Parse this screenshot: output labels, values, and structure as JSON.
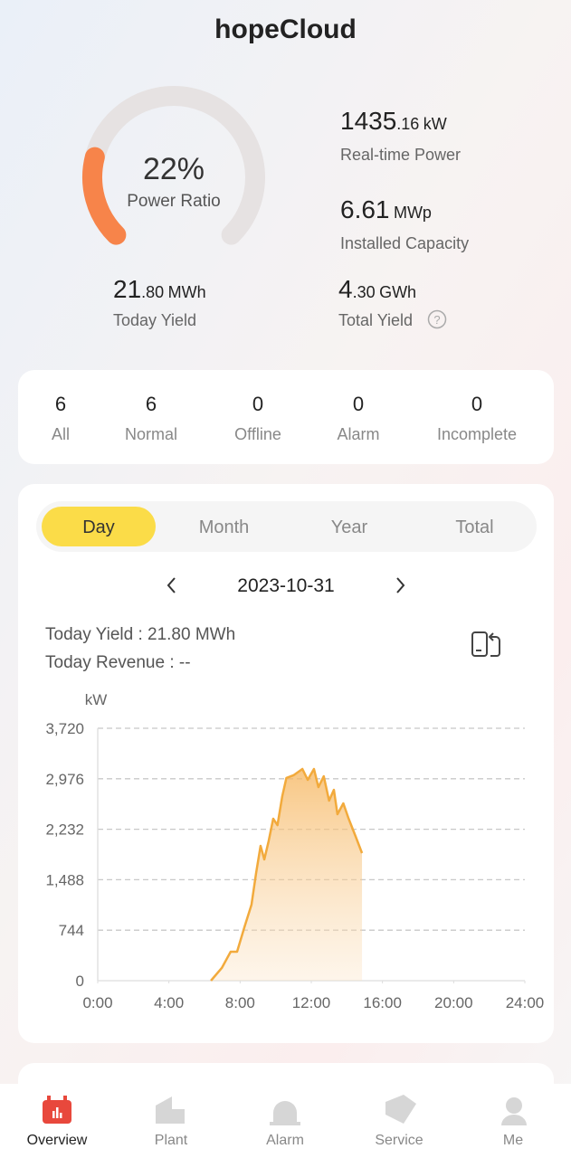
{
  "header": {
    "title": "hopeCloud"
  },
  "gauge": {
    "value": 22,
    "value_label": "22%",
    "label": "Power Ratio"
  },
  "stats": [
    {
      "int": "1435",
      "dec": ".16",
      "unit": "kW",
      "label": "Real-time Power"
    },
    {
      "int": "6.61",
      "unit": "MWp",
      "label": "Installed Capacity"
    },
    {
      "int": "21",
      "dec": ".80",
      "unit": "MWh",
      "label": "Today Yield"
    },
    {
      "int": "4",
      "dec": ".30",
      "unit": "GWh",
      "label": "Total Yield"
    }
  ],
  "status": [
    {
      "count": "6",
      "label": "All"
    },
    {
      "count": "6",
      "label": "Normal"
    },
    {
      "count": "0",
      "label": "Offline"
    },
    {
      "count": "0",
      "label": "Alarm"
    },
    {
      "count": "0",
      "label": "Incomplete"
    }
  ],
  "tabs": [
    "Day",
    "Month",
    "Year",
    "Total"
  ],
  "date": "2023-10-31",
  "summary": [
    "Today Yield : 21.80 MWh",
    "Today Revenue : --"
  ],
  "chart_data": {
    "type": "area",
    "ylabel": "kW",
    "color": "#f2aa3c",
    "x": [
      6.36,
      6.97,
      7.47,
      7.83,
      8.24,
      8.64,
      8.9,
      9.15,
      9.36,
      9.6,
      9.86,
      10.1,
      10.37,
      10.6,
      11.0,
      11.5,
      11.8,
      12.15,
      12.4,
      12.7,
      13.0,
      13.27,
      13.47,
      13.8,
      14.1,
      14.5,
      14.85
    ],
    "y": [
      0,
      187,
      427,
      427,
      787,
      1120,
      1587,
      1987,
      1787,
      2053,
      2387,
      2293,
      2720,
      2987,
      3027,
      3120,
      2960,
      3120,
      2853,
      3013,
      2653,
      2813,
      2453,
      2613,
      2387,
      2120,
      1880
    ],
    "xlim": [
      0,
      24
    ],
    "xticks": [
      {
        "value": 0,
        "label": "0:00"
      },
      {
        "value": 4,
        "label": "4:00"
      },
      {
        "value": 8,
        "label": "8:00"
      },
      {
        "value": 12,
        "label": "12:00"
      },
      {
        "value": 16,
        "label": "16:00"
      },
      {
        "value": 20,
        "label": "20:00"
      },
      {
        "value": 24,
        "label": "24:00"
      }
    ],
    "ylim": [
      0,
      3720
    ],
    "yticks": [
      0,
      744,
      {
        "value": 1488,
        "label": "1,488"
      },
      {
        "value": 2232,
        "label": "2,232"
      },
      {
        "value": 2976,
        "label": "2,976"
      },
      {
        "value": 3720,
        "label": "3,720"
      }
    ],
    "grid": true
  },
  "nav": [
    "Overview",
    "Plant",
    "Alarm",
    "Service",
    "Me"
  ]
}
